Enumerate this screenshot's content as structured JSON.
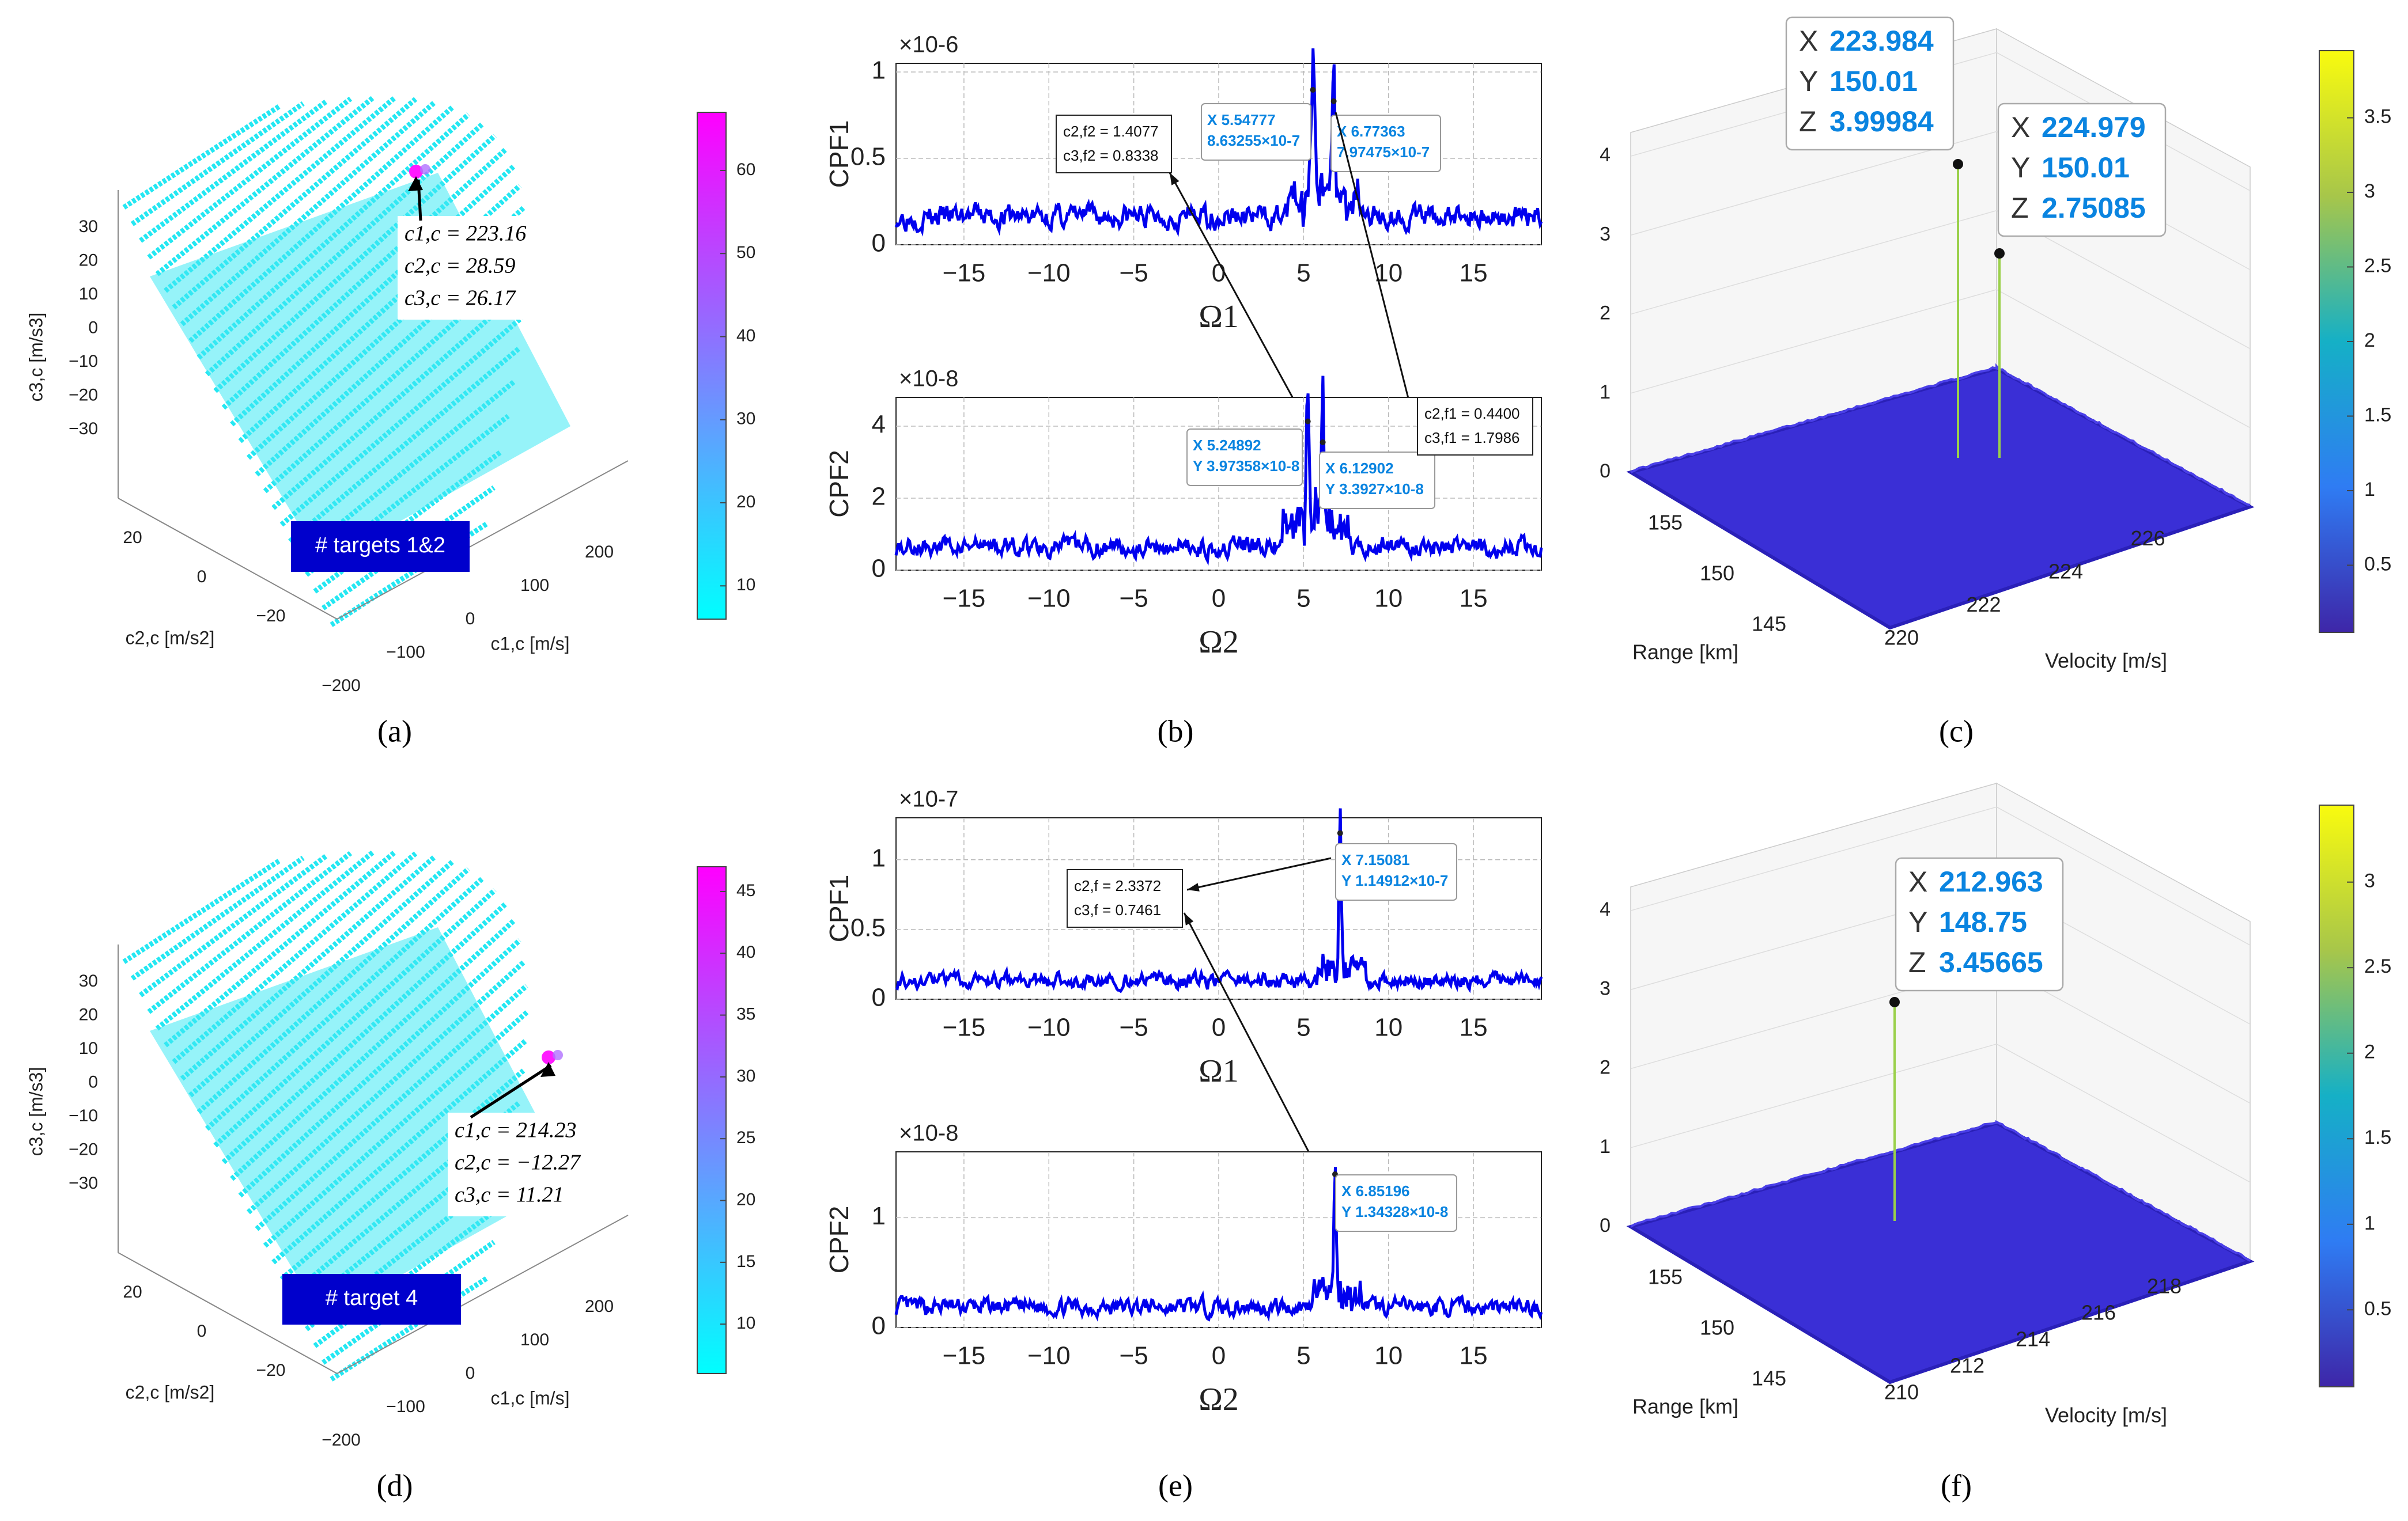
{
  "panels": [
    {
      "id": "a",
      "caption": "(a)",
      "type": "scatter3d",
      "axes": {
        "z_label": "c3,c [m/s3]",
        "z_ticks": [
          30,
          20,
          10,
          0,
          -10,
          -20,
          -30
        ],
        "y_label": "c2,c [m/s2]",
        "y_ticks": [
          20,
          0,
          -20
        ],
        "x_label": "c1,c [m/s]",
        "x_ticks": [
          200,
          100,
          0,
          -100,
          -200
        ]
      },
      "colorbar": {
        "ticks": [
          60,
          50,
          40,
          30,
          20,
          10
        ],
        "range": [
          6,
          67
        ],
        "low": "#00ffff",
        "high": "#ff00ff"
      },
      "peak_label": [
        "c1,c = 223.16",
        "c2,c = 28.59",
        "c3,c = 26.17"
      ],
      "badge": "# targets 1&2"
    },
    {
      "id": "b",
      "caption": "(b)",
      "type": "line",
      "subplots": [
        {
          "ylabel": "CPF1",
          "xlabel": "Ω1",
          "multiplier": "×10-6",
          "yticks": [
            0,
            0.5,
            1
          ],
          "ylim": [
            0,
            1.05
          ],
          "xticks": [
            -15,
            -10,
            -5,
            0,
            5,
            10,
            15
          ],
          "xlim": [
            -19,
            19
          ],
          "noise_level": 0.15,
          "peaks": [
            {
              "x": 5.54777,
              "y": 0.863255,
              "tip_x": "X 5.54777",
              "tip_y": "8.63255×10-7"
            },
            {
              "x": 6.77363,
              "y": 0.797475,
              "tip_x": "X 6.77363",
              "tip_y": "7.97475×10-7"
            }
          ],
          "box": [
            "c2,f2 = 1.4077",
            "c3,f2 = 0.8338"
          ]
        },
        {
          "ylabel": "CPF2",
          "xlabel": "Ω2",
          "multiplier": "×10-8",
          "yticks": [
            0,
            2,
            4
          ],
          "ylim": [
            0,
            4.8
          ],
          "xticks": [
            -15,
            -10,
            -5,
            0,
            5,
            10,
            15
          ],
          "xlim": [
            -19,
            19
          ],
          "noise_level": 0.6,
          "peaks": [
            {
              "x": 5.24892,
              "y": 3.97358,
              "tip_x": "X 5.24892",
              "tip_y": "Y 3.97358×10-8"
            },
            {
              "x": 6.12902,
              "y": 3.3927,
              "tip_x": "X 6.12902",
              "tip_y": "Y 3.3927×10-8"
            }
          ],
          "box": [
            "c2,f1 = 0.4400",
            "c3,f1 = 1.7986"
          ]
        }
      ]
    },
    {
      "id": "c",
      "caption": "(c)",
      "type": "surface3d",
      "axes": {
        "z_ticks": [
          0,
          1,
          2,
          3,
          4
        ],
        "range_label": "Range [km]",
        "range_ticks": [
          155,
          150,
          145
        ],
        "velocity_label": "Velocity [m/s]",
        "velocity_ticks": [
          220,
          222,
          224,
          226
        ]
      },
      "colorbar": {
        "ticks": [
          3.5,
          3,
          2.5,
          2,
          1.5,
          1,
          0.5
        ],
        "range": [
          0.05,
          3.95
        ]
      },
      "datatips": [
        {
          "x": "223.984",
          "y": "150.01",
          "z": "3.99984"
        },
        {
          "x": "224.979",
          "y": "150.01",
          "z": "2.75085"
        }
      ]
    },
    {
      "id": "d",
      "caption": "(d)",
      "type": "scatter3d",
      "axes": {
        "z_label": "c3,c [m/s3]",
        "z_ticks": [
          30,
          20,
          10,
          0,
          -10,
          -20,
          -30
        ],
        "y_label": "c2,c [m/s2]",
        "y_ticks": [
          20,
          0,
          -20
        ],
        "x_label": "c1,c [m/s]",
        "x_ticks": [
          200,
          100,
          0,
          -100,
          -200
        ]
      },
      "colorbar": {
        "ticks": [
          45,
          40,
          35,
          30,
          25,
          20,
          15,
          10
        ],
        "range": [
          6,
          47
        ],
        "low": "#00ffff",
        "high": "#ff00ff"
      },
      "peak_label": [
        "c1,c = 214.23",
        "c2,c = −12.27",
        "c3,c = 11.21"
      ],
      "badge": "# target 4"
    },
    {
      "id": "e",
      "caption": "(e)",
      "type": "line",
      "subplots": [
        {
          "ylabel": "CPF1",
          "xlabel": "Ω1",
          "multiplier": "×10-7",
          "yticks": [
            0,
            0.5,
            1
          ],
          "ylim": [
            0,
            1.3
          ],
          "xticks": [
            -15,
            -10,
            -5,
            0,
            5,
            10,
            15
          ],
          "xlim": [
            -19,
            19
          ],
          "noise_level": 0.12,
          "peaks": [
            {
              "x": 7.15081,
              "y": 1.14912,
              "tip_x": "X 7.15081",
              "tip_y": "Y 1.14912×10-7"
            }
          ],
          "box": [
            "c2,f = 2.3372",
            "c3,f = 0.7461"
          ]
        },
        {
          "ylabel": "CPF2",
          "xlabel": "Ω2",
          "multiplier": "×10-8",
          "yticks": [
            0,
            1
          ],
          "ylim": [
            0,
            1.6
          ],
          "xticks": [
            -15,
            -10,
            -5,
            0,
            5,
            10,
            15
          ],
          "xlim": [
            -19,
            19
          ],
          "noise_level": 0.17,
          "peaks": [
            {
              "x": 6.85196,
              "y": 1.34328,
              "tip_x": "X 6.85196",
              "tip_y": "Y 1.34328×10-8"
            }
          ],
          "box": []
        }
      ]
    },
    {
      "id": "f",
      "caption": "(f)",
      "type": "surface3d",
      "axes": {
        "z_ticks": [
          0,
          1,
          2,
          3,
          4
        ],
        "range_label": "Range [km]",
        "range_ticks": [
          155,
          150,
          145
        ],
        "velocity_label": "Velocity [m/s]",
        "velocity_ticks": [
          210,
          212,
          214,
          216,
          218
        ]
      },
      "colorbar": {
        "ticks": [
          3,
          2.5,
          2,
          1.5,
          1,
          0.5
        ],
        "range": [
          0.05,
          3.45
        ]
      },
      "datatips": [
        {
          "x": "212.963",
          "y": "148.75",
          "z": "3.45665"
        }
      ]
    }
  ],
  "colors": {
    "line": "#0000ee",
    "tip_text": "#0a84e0",
    "badge_bg": "#0000cc",
    "surface": "#3a2fd6"
  }
}
